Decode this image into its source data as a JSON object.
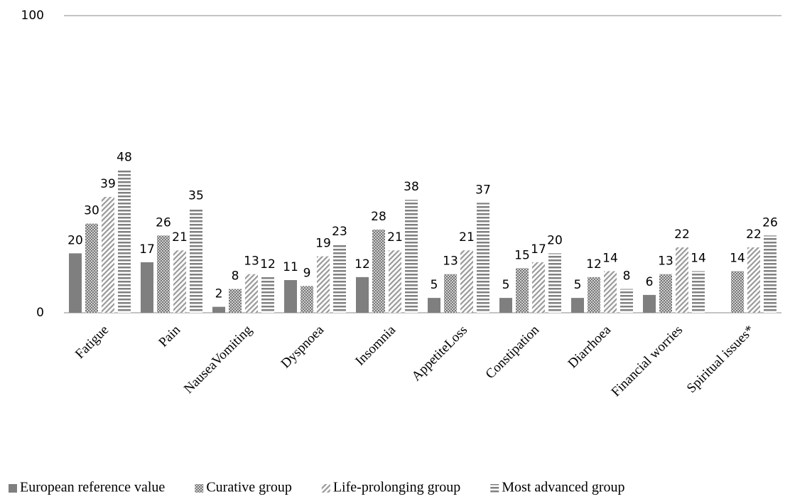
{
  "chart_data": {
    "type": "bar",
    "categories": [
      "Fatigue",
      "Pain",
      "NauseaVomiting",
      "Dyspnoea",
      "Insomnia",
      "AppetiteLoss",
      "Constipation",
      "Diarrhoea",
      "Financial worries",
      "Spiritual issues*"
    ],
    "series": [
      {
        "name": "European reference value",
        "color": "#7f7f7f",
        "pattern": "solid",
        "values": [
          20,
          17,
          2,
          11,
          12,
          5,
          5,
          5,
          6,
          null
        ]
      },
      {
        "name": "Curative group",
        "color": "#8c8c8c",
        "pattern": "dots",
        "values": [
          30,
          26,
          8,
          9,
          28,
          13,
          15,
          12,
          13,
          14
        ]
      },
      {
        "name": "Life-prolonging group",
        "color": "#9a9a9a",
        "pattern": "diagonal",
        "values": [
          39,
          21,
          13,
          19,
          21,
          21,
          17,
          14,
          22,
          22
        ]
      },
      {
        "name": "Most advanced group",
        "color": "#808080",
        "pattern": "horizontal",
        "values": [
          48,
          35,
          12,
          23,
          38,
          37,
          20,
          8,
          14,
          26
        ]
      }
    ],
    "ylim": [
      0,
      100
    ],
    "yticks": [
      0,
      100
    ],
    "grid": true,
    "legend": "bottom"
  }
}
